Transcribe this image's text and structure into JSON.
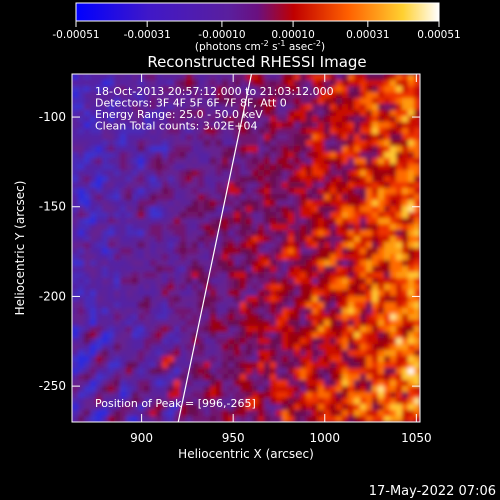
{
  "chart_data": {
    "type": "heatmap",
    "title": "Reconstructed RHESSI Image",
    "xlabel": "Heliocentric X (arcsec)",
    "ylabel": "Heliocentric Y (arcsec)",
    "xlim": [
      862,
      1052
    ],
    "ylim": [
      -270,
      -76
    ],
    "xticks": [
      900,
      950,
      1000,
      1050
    ],
    "yticks": [
      -100,
      -150,
      -200,
      -250
    ],
    "colorbar": {
      "ticks": [
        "-0.00051",
        "-0.00031",
        "-0.00010",
        "0.00010",
        "0.00031",
        "0.00051"
      ],
      "tick_values": [
        -0.00051,
        -0.00031,
        -0.0001,
        0.0001,
        0.00031,
        0.00051
      ],
      "range": [
        -0.00051,
        0.00051
      ],
      "unit_text": "(photons cm",
      "unit_sup1": "-2",
      "unit_mid1": " s",
      "unit_sup2": "-1",
      "unit_mid2": " asec",
      "unit_sup3": "-2",
      "unit_end": ")",
      "colors": [
        "#0000ff",
        "#5a1aa8",
        "#601f97",
        "#7a0060",
        "#cc0000",
        "#ff6600",
        "#ffcc22",
        "#ffffff"
      ]
    },
    "info_lines": [
      "18-Oct-2013 20:57:12.000 to 21:03:12.000",
      "Detectors: 3F 4F 5F 6F 7F 8F, Att 0",
      "Energy Range: 25.0 - 50.0 keV",
      "Clean    Total counts: 3.02E+04"
    ],
    "peak_label": "Position of Peak = [996,-265]",
    "limb_line": {
      "x": [
        920,
        960
      ],
      "y": [
        -270,
        -76
      ]
    },
    "grid": false
  },
  "footer_date": "17-May-2022 07:06"
}
